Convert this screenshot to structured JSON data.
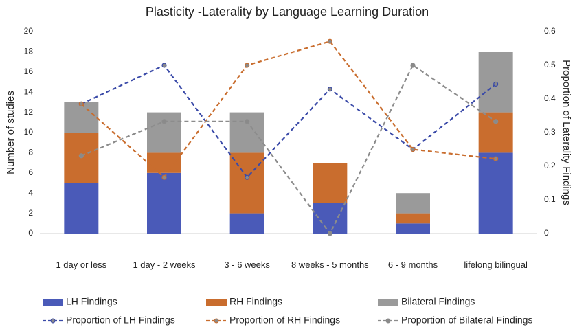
{
  "chart_data": {
    "type": "bar",
    "stacked": true,
    "title": "Plasticity -Laterality by Language Learning Duration",
    "ylabel": "Number of studies",
    "y2label": "Proportion of Laterality Findings",
    "categories": [
      "1 day or less",
      "1 day - 2 weeks",
      "3 - 6 weeks",
      "8 weeks - 5 months",
      "6 - 9 months",
      "lifelong bilingual"
    ],
    "series": [
      {
        "name": "LH Findings",
        "color": "#4a5ab8",
        "values": [
          5,
          6,
          2,
          3,
          1,
          8
        ]
      },
      {
        "name": "RH Findings",
        "color": "#c96d2e",
        "values": [
          5,
          2,
          6,
          4,
          1,
          4
        ]
      },
      {
        "name": "Bilateral Findings",
        "color": "#9a9a9a",
        "values": [
          3,
          4,
          4,
          0,
          2,
          6
        ]
      },
      {
        "name": "Proportion of LH Findings",
        "type": "line",
        "axis": "y2",
        "color": "#3a4aa8",
        "values": [
          0.385,
          0.5,
          0.167,
          0.429,
          0.25,
          0.444
        ]
      },
      {
        "name": "Proportion of RH Findings",
        "type": "line",
        "axis": "y2",
        "color": "#c96d2e",
        "values": [
          0.385,
          0.167,
          0.5,
          0.571,
          0.25,
          0.222
        ]
      },
      {
        "name": "Proportion of Bilateral Findings",
        "type": "line",
        "axis": "y2",
        "color": "#8c8c8c",
        "values": [
          0.231,
          0.333,
          0.333,
          0,
          0.5,
          0.333
        ]
      }
    ],
    "ylim": [
      0,
      20
    ],
    "yticks": [
      0,
      2,
      4,
      6,
      8,
      10,
      12,
      14,
      16,
      18,
      20
    ],
    "y2lim": [
      0,
      0.6
    ],
    "y2ticks": [
      0,
      0.1,
      0.2,
      0.3,
      0.4,
      0.5,
      0.6
    ],
    "grid": false,
    "legend": "bottom"
  }
}
